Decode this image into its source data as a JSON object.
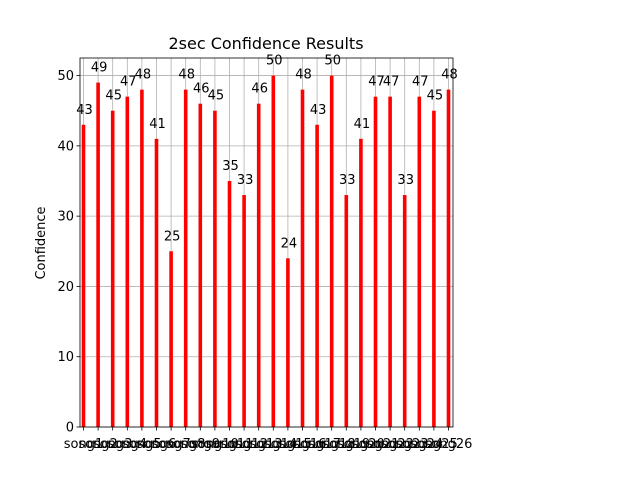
{
  "chart_data": {
    "type": "bar",
    "title": "2sec Confidence Results",
    "xlabel": "",
    "ylabel": "Confidence",
    "ylim": [
      0,
      52.5
    ],
    "yticks": [
      0,
      10,
      20,
      30,
      40,
      50
    ],
    "grid": true,
    "categories": [
      "song1",
      "song2",
      "song3",
      "song4",
      "song5",
      "song6",
      "song7",
      "song8",
      "song9",
      "song10",
      "song11",
      "song12",
      "song13",
      "song14",
      "song15",
      "song16",
      "song17",
      "song18",
      "song19",
      "song20",
      "song21",
      "song22",
      "song23",
      "song24",
      "song25",
      "song26"
    ],
    "values": [
      43,
      49,
      45,
      47,
      48,
      41,
      25,
      48,
      46,
      45,
      35,
      33,
      46,
      50,
      24,
      48,
      43,
      50,
      33,
      41,
      47,
      47,
      33,
      47,
      45,
      48
    ],
    "colors": {
      "bar": "#ff0000",
      "grid": "#b0b0b0"
    }
  }
}
